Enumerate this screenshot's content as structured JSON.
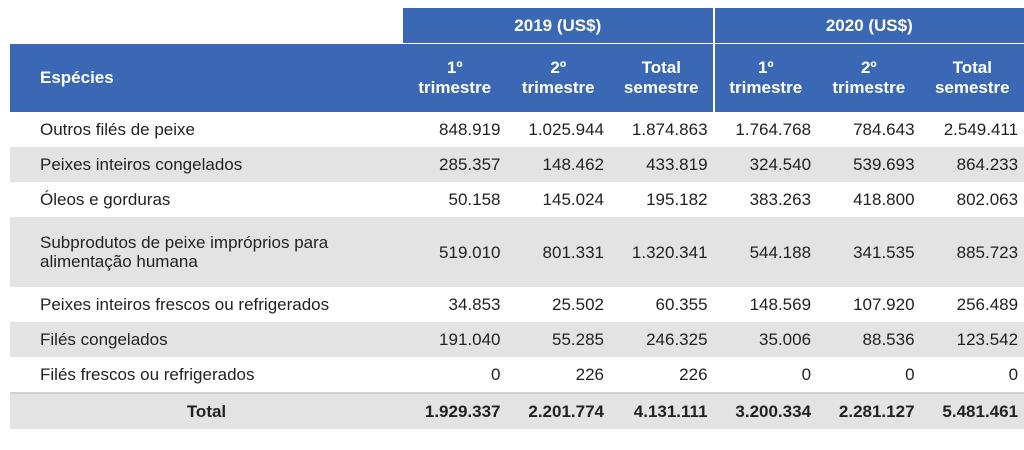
{
  "header": {
    "species_label": "Espécies",
    "year_groups": [
      {
        "label": "2019 (US$)"
      },
      {
        "label": "2020 (US$)"
      }
    ],
    "sub_columns": [
      {
        "line1": "1º",
        "line2": "trimestre"
      },
      {
        "line1": "2º",
        "line2": "trimestre"
      },
      {
        "line1": "Total",
        "line2": "semestre"
      },
      {
        "line1": "1º",
        "line2": "trimestre"
      },
      {
        "line1": "2º",
        "line2": "trimestre"
      },
      {
        "line1": "Total",
        "line2": "semestre"
      }
    ]
  },
  "rows": [
    {
      "name": "Outros filés de peixe",
      "values": [
        "848.919",
        "1.025.944",
        "1.874.863",
        "1.764.768",
        "784.643",
        "2.549.411"
      ]
    },
    {
      "name": "Peixes inteiros congelados",
      "values": [
        "285.357",
        "148.462",
        "433.819",
        "324.540",
        "539.693",
        "864.233"
      ]
    },
    {
      "name": "Óleos e gorduras",
      "values": [
        "50.158",
        "145.024",
        "195.182",
        "383.263",
        "418.800",
        "802.063"
      ]
    },
    {
      "name_line1": "Subprodutos de peixe impróprios para",
      "name_line2": "alimentação humana",
      "values": [
        "519.010",
        "801.331",
        "1.320.341",
        "544.188",
        "341.535",
        "885.723"
      ]
    },
    {
      "name": "Peixes inteiros frescos ou refrigerados",
      "values": [
        "34.853",
        "25.502",
        "60.355",
        "148.569",
        "107.920",
        "256.489"
      ]
    },
    {
      "name": "Filés congelados",
      "values": [
        "191.040",
        "55.285",
        "246.325",
        "35.006",
        "88.536",
        "123.542"
      ]
    },
    {
      "name": "Filés frescos ou refrigerados",
      "values": [
        "0",
        "226",
        "226",
        "0",
        "0",
        "0"
      ]
    }
  ],
  "total": {
    "name": "Total",
    "values": [
      "1.929.337",
      "2.201.774",
      "4.131.111",
      "3.200.334",
      "2.281.127",
      "5.481.461"
    ]
  },
  "colors": {
    "header_bg": "#3a68b4",
    "stripe_bg": "#e3e3e3",
    "text": "#222222"
  }
}
